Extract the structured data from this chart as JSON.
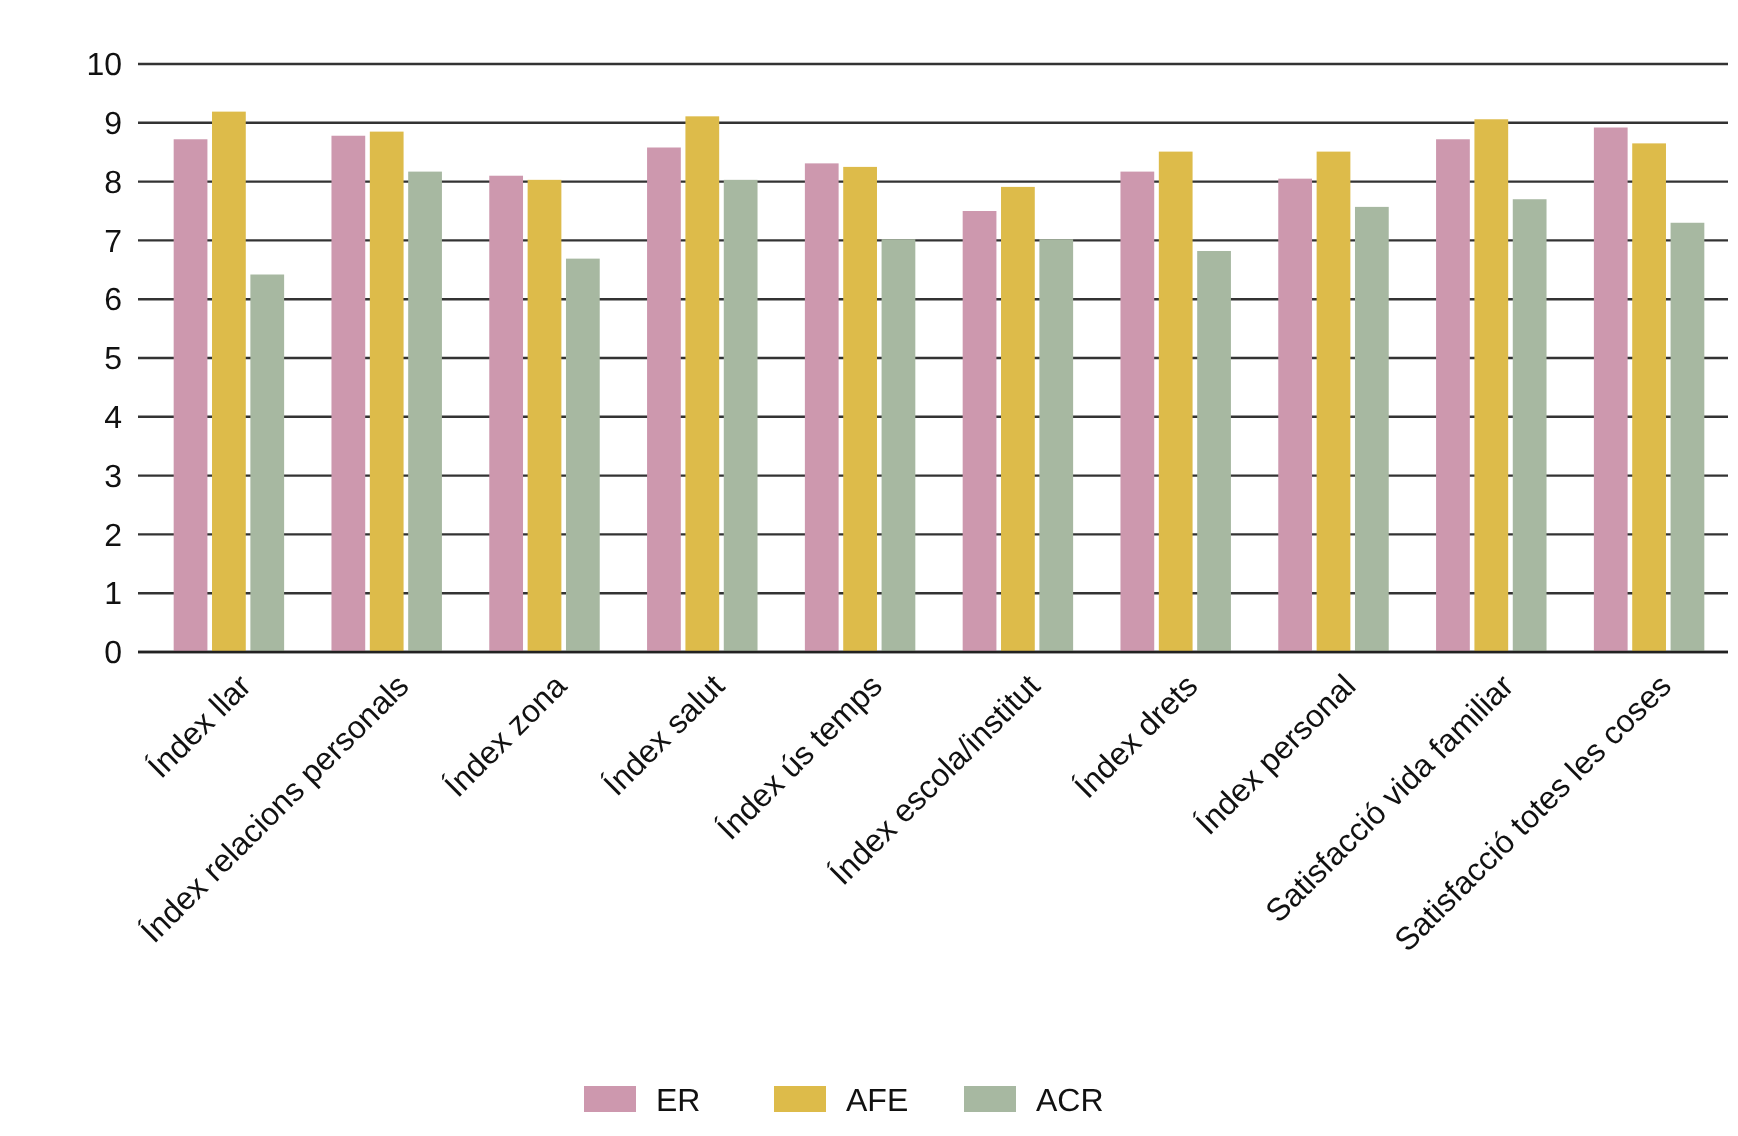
{
  "chart_data": {
    "type": "bar",
    "categories": [
      "Índex llar",
      "Índex relacions personals",
      "Índex zona",
      "Índex salut",
      "Índex ús temps",
      "Índex escola/institut",
      "Índex drets",
      "Índex personal",
      "Satisfacció vida familiar",
      "Satisfacció totes les coses"
    ],
    "series": [
      {
        "name": "ER",
        "color": "#cd98ae",
        "values": [
          8.72,
          8.78,
          8.1,
          8.58,
          8.31,
          7.5,
          8.17,
          8.05,
          8.72,
          8.92
        ]
      },
      {
        "name": "AFE",
        "color": "#ddbb4a",
        "values": [
          9.19,
          8.85,
          8.03,
          9.11,
          8.25,
          7.91,
          8.51,
          8.51,
          9.06,
          8.65
        ]
      },
      {
        "name": "ACR",
        "color": "#a7b8a1",
        "values": [
          6.42,
          8.17,
          6.69,
          8.03,
          7.02,
          7.02,
          6.82,
          7.57,
          7.7,
          7.3
        ]
      }
    ],
    "ylim": [
      0,
      10
    ],
    "yticks": [
      0,
      1,
      2,
      3,
      4,
      5,
      6,
      7,
      8,
      9,
      10
    ],
    "grid": "y",
    "legend": "bottom"
  }
}
